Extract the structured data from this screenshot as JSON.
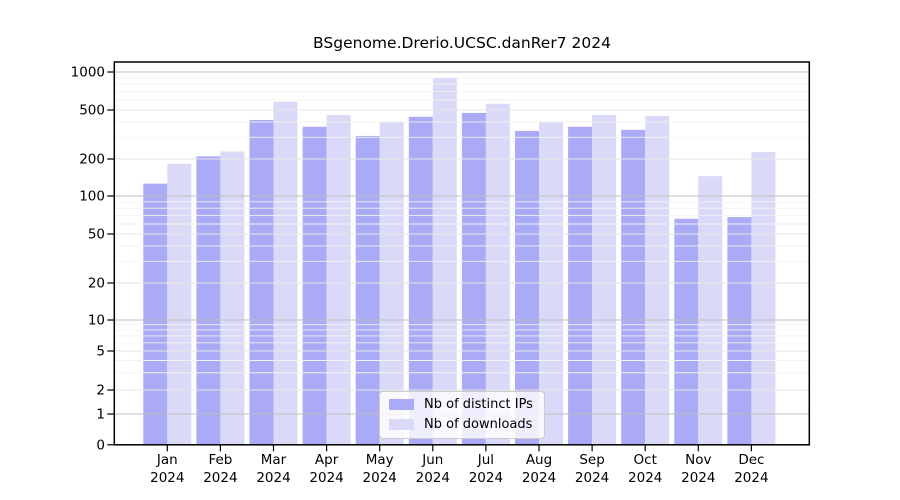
{
  "chart_data": {
    "type": "bar",
    "title": "BSgenome.Drerio.UCSC.danRer7 2024",
    "months": [
      "Jan",
      "Feb",
      "Mar",
      "Apr",
      "May",
      "Jun",
      "Jul",
      "Aug",
      "Sep",
      "Oct",
      "Nov",
      "Dec"
    ],
    "year": "2024",
    "series": [
      {
        "name": "Nb of distinct IPs",
        "color": "#aaaaf6",
        "values": [
          126,
          210,
          415,
          365,
          308,
          440,
          473,
          338,
          365,
          345,
          66,
          68
        ]
      },
      {
        "name": "Nb of downloads",
        "color": "#dadaf8",
        "values": [
          183,
          230,
          580,
          455,
          400,
          900,
          560,
          400,
          455,
          448,
          145,
          228
        ]
      }
    ],
    "y_axis": {
      "ticks": [
        0,
        1,
        2,
        5,
        10,
        20,
        50,
        100,
        200,
        500,
        1000
      ],
      "scale": "log (compressed linear below 1, zero baseline shown)",
      "ylim": [
        0,
        1000
      ]
    },
    "grid": "on",
    "legend_position": "lower center inside plot"
  }
}
